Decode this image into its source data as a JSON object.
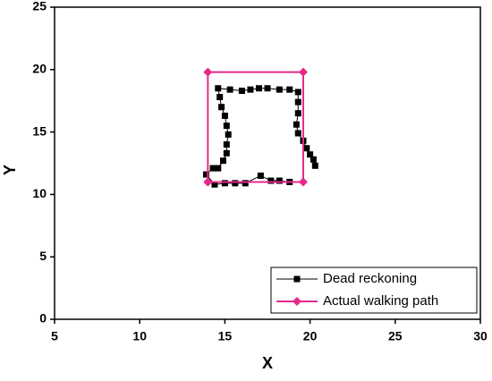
{
  "chart_data": {
    "type": "line",
    "xlabel": "X",
    "ylabel": "Y",
    "xlim": [
      5,
      30
    ],
    "xticks": [
      5,
      10,
      15,
      20,
      25,
      30
    ],
    "ylim": [
      0,
      25
    ],
    "yticks": [
      0,
      5,
      10,
      15,
      20,
      25
    ],
    "legend": "bottom-right",
    "series": [
      {
        "name": "Dead reckoning",
        "color": "#000000",
        "marker": "square",
        "x": [
          18.8,
          18.2,
          17.7,
          17.1,
          16.2,
          15.6,
          15.0,
          14.4,
          13.9,
          14.3,
          14.6,
          14.9,
          15.1,
          15.1,
          15.2,
          15.1,
          15.0,
          14.8,
          14.7,
          14.6,
          15.3,
          16.0,
          16.5,
          17.0,
          17.5,
          18.2,
          18.8,
          19.3,
          19.3,
          19.3,
          19.2,
          19.3,
          19.6,
          19.8,
          20.0,
          20.2,
          20.3
        ],
        "values": [
          11.0,
          11.1,
          11.1,
          11.5,
          10.9,
          10.9,
          10.9,
          10.8,
          11.6,
          12.1,
          12.1,
          12.7,
          13.3,
          14.0,
          14.8,
          15.5,
          16.3,
          17.0,
          17.8,
          18.5,
          18.4,
          18.3,
          18.4,
          18.5,
          18.5,
          18.4,
          18.4,
          18.2,
          17.4,
          16.5,
          15.6,
          14.9,
          14.3,
          13.7,
          13.2,
          12.8,
          12.3
        ]
      },
      {
        "name": "Actual walking path",
        "color": "#e8298a",
        "marker": "diamond",
        "x": [
          14.0,
          14.0,
          19.6,
          19.6,
          14.0
        ],
        "values": [
          11.0,
          19.8,
          19.8,
          11.0,
          11.0
        ]
      }
    ]
  }
}
